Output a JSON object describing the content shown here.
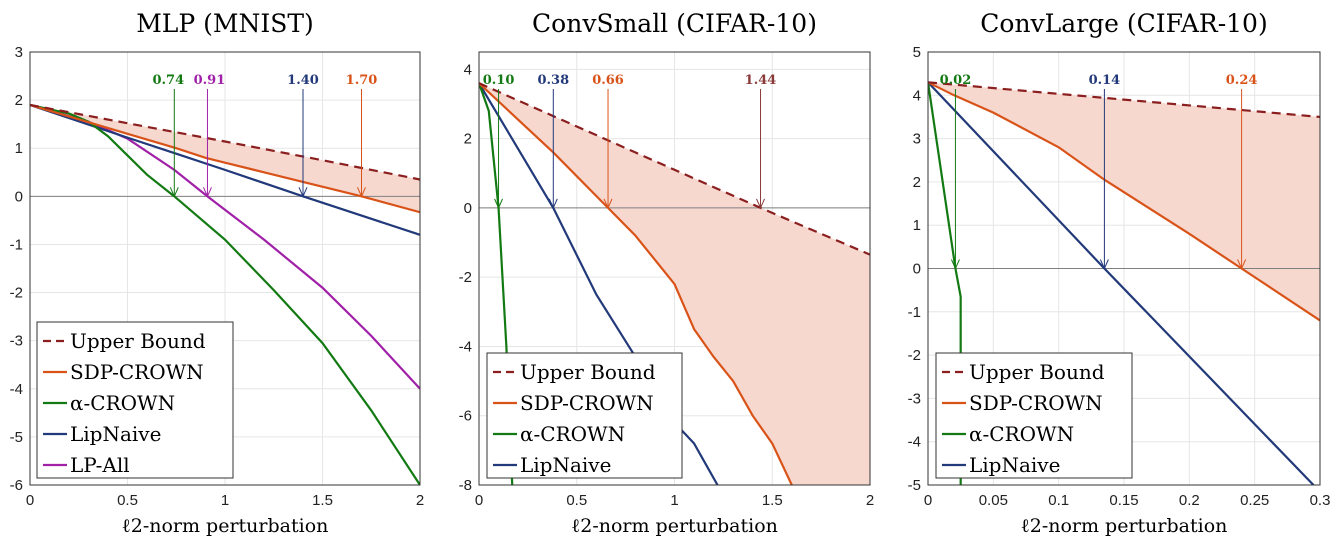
{
  "colors": {
    "Upper Bound": "#8B1E1E",
    "SDP-CROWN": "#D95319",
    "α-CROWN": "#137A13",
    "LipNaive": "#22397A",
    "LP-All": "#A020A8",
    "fill": "#F6D8CF"
  },
  "chart_data": [
    {
      "type": "line",
      "title": "MLP (MNIST)",
      "xlabel": "ℓ2-norm perturbation",
      "xlim": [
        0,
        2
      ],
      "ylim": [
        -6,
        3
      ],
      "xticks": [
        0,
        0.5,
        1,
        1.5,
        2
      ],
      "xtick_labels": [
        "0",
        "0.5",
        "1",
        "1.5",
        "2"
      ],
      "yticks": [
        3,
        2,
        1,
        0,
        -1,
        -2,
        -3,
        -4,
        -5,
        -6
      ],
      "ytick_labels": [
        "3",
        "2",
        "1",
        "0",
        "-1",
        "-2",
        "-3",
        "-4",
        "-5",
        "-6"
      ],
      "grid": true,
      "legend": "bottom-left",
      "shaded_between": [
        "Upper Bound",
        "SDP-CROWN"
      ],
      "series": [
        {
          "name": "Upper Bound",
          "dashed": true,
          "x": [
            0,
            0.5,
            1,
            1.5,
            2
          ],
          "y": [
            1.9,
            1.52,
            1.14,
            0.75,
            0.35
          ]
        },
        {
          "name": "SDP-CROWN",
          "x": [
            0,
            0.25,
            0.5,
            0.75,
            0.9,
            1.0,
            1.2,
            1.4,
            1.7,
            2
          ],
          "y": [
            1.9,
            1.6,
            1.3,
            1.0,
            0.8,
            0.7,
            0.5,
            0.3,
            0,
            -0.33
          ]
        },
        {
          "name": "α-CROWN",
          "x": [
            0,
            0.2,
            0.3,
            0.4,
            0.5,
            0.6,
            0.74,
            1.0,
            1.25,
            1.5,
            1.75,
            2
          ],
          "y": [
            1.9,
            1.72,
            1.55,
            1.25,
            0.85,
            0.45,
            0,
            -0.9,
            -1.95,
            -3.05,
            -4.45,
            -6
          ]
        },
        {
          "name": "LipNaive",
          "x": [
            0,
            0.5,
            0.74,
            1.0,
            1.4,
            2
          ],
          "y": [
            1.9,
            1.22,
            0.9,
            0.55,
            0,
            -0.8
          ]
        },
        {
          "name": "LP-All",
          "x": [
            0,
            0.3,
            0.5,
            0.74,
            0.91,
            1.2,
            1.5,
            1.75,
            2
          ],
          "y": [
            1.9,
            1.55,
            1.2,
            0.55,
            0,
            -0.9,
            -1.9,
            -2.9,
            -4
          ]
        }
      ],
      "annotations": [
        {
          "label": "0.74",
          "x": 0.74,
          "series": "α-CROWN"
        },
        {
          "label": "0.91",
          "x": 0.91,
          "series": "LP-All"
        },
        {
          "label": "1.40",
          "x": 1.4,
          "series": "LipNaive"
        },
        {
          "label": "1.70",
          "x": 1.7,
          "series": "SDP-CROWN"
        }
      ]
    },
    {
      "type": "line",
      "title": "ConvSmall (CIFAR-10)",
      "xlabel": "ℓ2-norm perturbation",
      "xlim": [
        0,
        2
      ],
      "ylim": [
        -8,
        4.5
      ],
      "xticks": [
        0,
        0.5,
        1,
        1.5,
        2
      ],
      "xtick_labels": [
        "0",
        "0.5",
        "1",
        "1.5",
        "2"
      ],
      "yticks": [
        4,
        2,
        0,
        -2,
        -4,
        -6,
        -8
      ],
      "ytick_labels": [
        "4",
        "2",
        "0",
        "-2",
        "-4",
        "-6",
        "-8"
      ],
      "grid": true,
      "legend": "bottom-left",
      "shaded_between": [
        "Upper Bound",
        "SDP-CROWN"
      ],
      "series": [
        {
          "name": "Upper Bound",
          "dashed": true,
          "x": [
            0,
            1.44,
            2
          ],
          "y": [
            3.6,
            0,
            -1.35
          ]
        },
        {
          "name": "SDP-CROWN",
          "x": [
            0,
            0.38,
            0.66,
            0.8,
            1.0,
            1.1,
            1.2,
            1.3,
            1.4,
            1.5,
            1.6
          ],
          "y": [
            3.6,
            1.6,
            0,
            -0.8,
            -2.2,
            -3.5,
            -4.3,
            -5.0,
            -6.0,
            -6.8,
            -8
          ]
        },
        {
          "name": "α-CROWN",
          "x": [
            0,
            0.05,
            0.1,
            0.14,
            0.17
          ],
          "y": [
            3.6,
            2.8,
            0,
            -4,
            -8
          ]
        },
        {
          "name": "LipNaive",
          "x": [
            0,
            0.38,
            0.6,
            0.8,
            1.0,
            1.1,
            1.22
          ],
          "y": [
            3.6,
            0,
            -2.5,
            -4.3,
            -6.2,
            -6.8,
            -8
          ]
        }
      ],
      "annotations": [
        {
          "label": "0.10",
          "x": 0.1,
          "series": "α-CROWN"
        },
        {
          "label": "0.38",
          "x": 0.38,
          "series": "LipNaive"
        },
        {
          "label": "0.66",
          "x": 0.66,
          "series": "SDP-CROWN"
        },
        {
          "label": "1.44",
          "x": 1.44,
          "series": "Upper Bound"
        }
      ]
    },
    {
      "type": "line",
      "title": "ConvLarge (CIFAR-10)",
      "xlabel": "ℓ2-norm perturbation",
      "xlim": [
        0,
        0.3
      ],
      "ylim": [
        -5,
        5
      ],
      "xticks": [
        0,
        0.05,
        0.1,
        0.15,
        0.2,
        0.25,
        0.3
      ],
      "xtick_labels": [
        "0",
        "0.05",
        "0.1",
        "0.15",
        "0.2",
        "0.25",
        "0.3"
      ],
      "yticks": [
        5,
        4,
        3,
        2,
        1,
        0,
        -1,
        -2,
        -3,
        -4,
        -5
      ],
      "ytick_labels": [
        "5",
        "4",
        "3",
        "2",
        "1",
        "0",
        "-1",
        "-2",
        "-3",
        "-4",
        "-5"
      ],
      "grid": true,
      "legend": "bottom-left",
      "shaded_between": [
        "Upper Bound",
        "SDP-CROWN"
      ],
      "series": [
        {
          "name": "Upper Bound",
          "dashed": true,
          "x": [
            0,
            0.3
          ],
          "y": [
            4.3,
            3.5
          ]
        },
        {
          "name": "SDP-CROWN",
          "x": [
            0,
            0.02,
            0.05,
            0.1,
            0.135,
            0.2,
            0.24,
            0.3
          ],
          "y": [
            4.3,
            4.0,
            3.6,
            2.8,
            2.05,
            0.8,
            0,
            -1.2
          ]
        },
        {
          "name": "α-CROWN",
          "x": [
            0,
            0.021,
            0.025,
            0.025
          ],
          "y": [
            4.3,
            0,
            -0.65,
            -5
          ]
        },
        {
          "name": "LipNaive",
          "x": [
            0,
            0.135,
            0.295
          ],
          "y": [
            4.3,
            0,
            -5
          ]
        }
      ],
      "annotations": [
        {
          "label": "0.02",
          "x": 0.021,
          "series": "α-CROWN"
        },
        {
          "label": "0.14",
          "x": 0.135,
          "series": "LipNaive"
        },
        {
          "label": "0.24",
          "x": 0.24,
          "series": "SDP-CROWN"
        }
      ]
    }
  ]
}
